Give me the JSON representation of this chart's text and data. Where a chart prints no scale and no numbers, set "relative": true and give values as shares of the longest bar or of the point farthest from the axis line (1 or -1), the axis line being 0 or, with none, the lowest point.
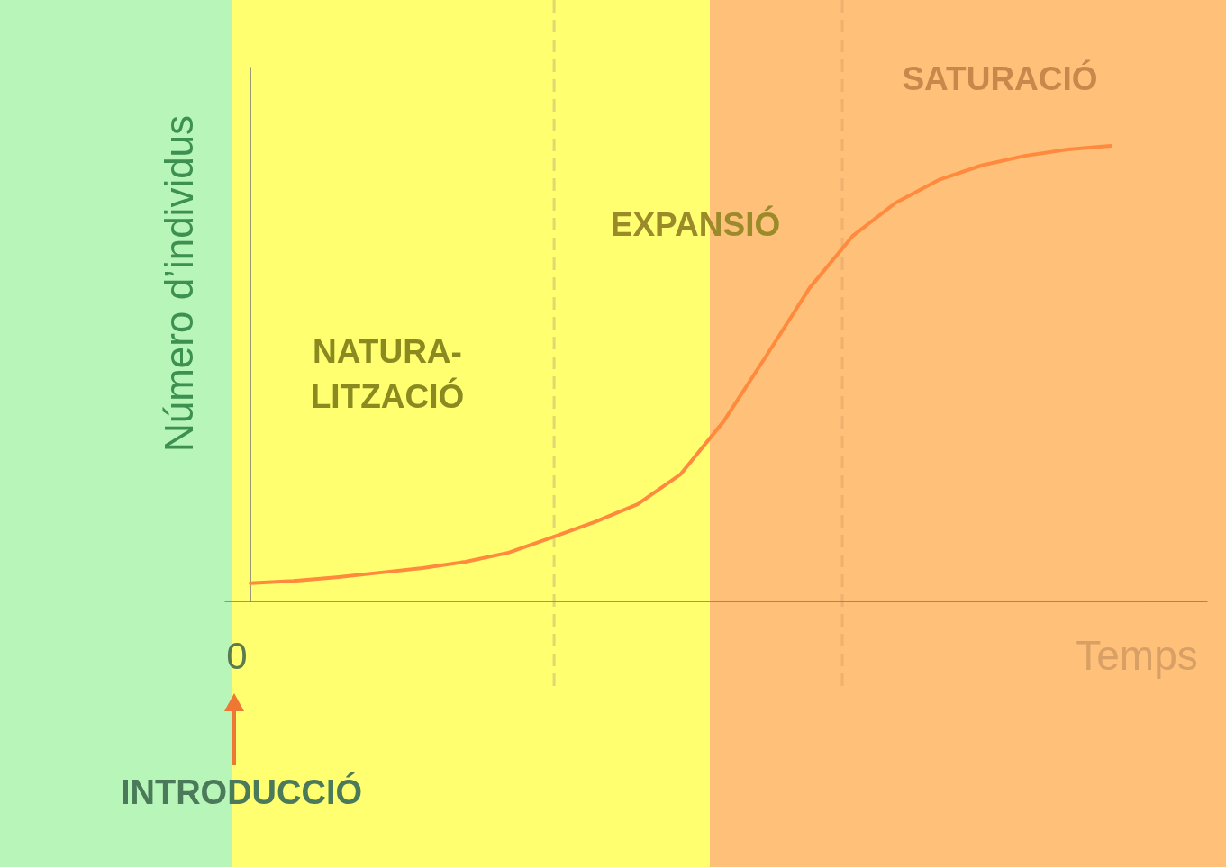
{
  "chart_data": {
    "type": "line",
    "relative": true,
    "xlabel": "Temps",
    "ylabel": "Número d’individus",
    "categories": [
      null,
      null,
      null,
      null,
      null,
      null,
      null,
      null,
      null,
      null,
      null,
      null,
      null,
      null,
      null,
      null,
      null,
      null,
      null,
      null,
      null
    ],
    "series": [
      {
        "color": "#ff8a3d",
        "values": [
          0.04,
          0.045,
          0.053,
          0.063,
          0.073,
          0.087,
          0.107,
          0.14,
          0.174,
          0.213,
          0.279,
          0.395,
          0.54,
          0.688,
          0.802,
          0.875,
          0.925,
          0.957,
          0.978,
          0.992,
          1
        ]
      }
    ],
    "annotations": [
      "0",
      "INTRODUCCIÓ",
      "NATURA-\nLITZACIÓ",
      "EXPANSIÓ",
      "SATURACIÓ"
    ],
    "grid": false,
    "marker": "none",
    "line_style": "solid"
  }
}
